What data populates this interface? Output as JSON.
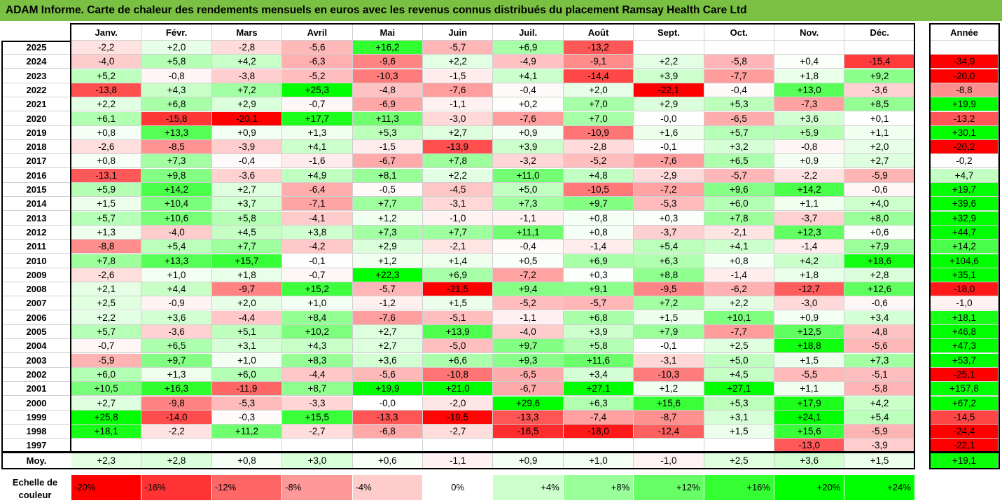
{
  "title": "ADAM Informe. Carte de chaleur des rendements mensuels en euros avec les revenus connus distribués du placement Ramsay Health Care Ltd",
  "colors": {
    "title_bg": "#7ac143",
    "max_red": "#ff0000",
    "max_green": "#00ff00"
  },
  "chart_data": {
    "type": "heatmap",
    "title": "ADAM Informe. Carte de chaleur des rendements mensuels en euros avec les revenus connus distribués du placement Ramsay Health Care Ltd",
    "months": [
      "Janv.",
      "Févr.",
      "Mars",
      "Avril",
      "Mai",
      "Juin",
      "Juil.",
      "Août",
      "Sept.",
      "Oct.",
      "Nov.",
      "Déc."
    ],
    "annual_label": "Année",
    "avg_label": "Moy.",
    "rows": [
      {
        "year": "2025",
        "values": [
          "-2,2",
          "+2,0",
          "-2,8",
          "-5,6",
          "+16,2",
          "-5,7",
          "+6,9",
          "-13,2",
          "",
          "",
          "",
          ""
        ],
        "annual": ""
      },
      {
        "year": "2024",
        "values": [
          "-4,0",
          "+5,8",
          "+4,2",
          "-6,3",
          "-9,6",
          "+2,2",
          "-4,9",
          "-9,1",
          "+2,2",
          "-5,8",
          "+0,4",
          "-15,4"
        ],
        "annual": "-34,9"
      },
      {
        "year": "2023",
        "values": [
          "+5,2",
          "-0,8",
          "-3,8",
          "-5,2",
          "-10,3",
          "-1,5",
          "+4,1",
          "-14,4",
          "+3,9",
          "-7,7",
          "+1,8",
          "+9,2"
        ],
        "annual": "-20,0"
      },
      {
        "year": "2022",
        "values": [
          "-13,8",
          "+4,3",
          "+7,2",
          "+25,3",
          "-4,8",
          "-7,6",
          "-0,4",
          "+2,0",
          "-22,1",
          "-0,4",
          "+13,0",
          "-3,6"
        ],
        "annual": "-8,8"
      },
      {
        "year": "2021",
        "values": [
          "+2,2",
          "+6,8",
          "+2,9",
          "-0,7",
          "-6,9",
          "-1,1",
          "+0,2",
          "+7,0",
          "+2,9",
          "+5,3",
          "-7,3",
          "+8,5"
        ],
        "annual": "+19,9"
      },
      {
        "year": "2020",
        "values": [
          "+6,1",
          "-15,8",
          "-20,1",
          "+17,7",
          "+11,3",
          "-3,0",
          "-7,6",
          "+7,0",
          "-0,0",
          "-6,5",
          "+3,6",
          "+0,1"
        ],
        "annual": "-13,2"
      },
      {
        "year": "2019",
        "values": [
          "+0,8",
          "+13,3",
          "+0,9",
          "+1,3",
          "+5,3",
          "+2,7",
          "+0,9",
          "-10,9",
          "+1,6",
          "+5,7",
          "+5,9",
          "+1,1"
        ],
        "annual": "+30,1"
      },
      {
        "year": "2018",
        "values": [
          "-2,6",
          "-8,5",
          "-3,9",
          "+4,1",
          "-1,5",
          "-13,9",
          "+3,9",
          "-2,8",
          "-0,1",
          "+3,2",
          "-0,8",
          "+2,0"
        ],
        "annual": "-20,2"
      },
      {
        "year": "2017",
        "values": [
          "+0,8",
          "+7,3",
          "-0,4",
          "-1,6",
          "-6,7",
          "+7,8",
          "-3,2",
          "-5,2",
          "-7,6",
          "+6,5",
          "+0,9",
          "+2,7"
        ],
        "annual": "-0,2"
      },
      {
        "year": "2016",
        "values": [
          "-13,1",
          "+9,8",
          "-3,6",
          "+4,9",
          "+8,1",
          "+2,2",
          "+11,0",
          "+4,8",
          "-2,9",
          "-5,7",
          "-2,2",
          "-5,9"
        ],
        "annual": "+4,7"
      },
      {
        "year": "2015",
        "values": [
          "+5,9",
          "+14,2",
          "+2,7",
          "-6,4",
          "-0,5",
          "-4,5",
          "+5,0",
          "-10,5",
          "-7,2",
          "+9,6",
          "+14,2",
          "-0,6"
        ],
        "annual": "+19,7"
      },
      {
        "year": "2014",
        "values": [
          "+1,5",
          "+10,4",
          "+3,7",
          "-7,1",
          "+7,7",
          "-3,1",
          "+7,3",
          "+9,7",
          "-5,3",
          "+6,0",
          "+1,1",
          "+4,0"
        ],
        "annual": "+39,6"
      },
      {
        "year": "2013",
        "values": [
          "+5,7",
          "+10,6",
          "+5,8",
          "-4,1",
          "+1,2",
          "-1,0",
          "-1,1",
          "+0,8",
          "+0,3",
          "+7,8",
          "-3,7",
          "+8,0"
        ],
        "annual": "+32,9"
      },
      {
        "year": "2012",
        "values": [
          "+1,3",
          "-4,0",
          "+4,5",
          "+3,8",
          "+7,3",
          "+7,7",
          "+11,1",
          "+0,8",
          "-3,7",
          "-2,1",
          "+12,3",
          "+0,6"
        ],
        "annual": "+44,7"
      },
      {
        "year": "2011",
        "values": [
          "-8,8",
          "+5,4",
          "+7,7",
          "-4,2",
          "+2,9",
          "-2,1",
          "-0,4",
          "-1,4",
          "+5,4",
          "+4,1",
          "-1,4",
          "+7,9"
        ],
        "annual": "+14,2"
      },
      {
        "year": "2010",
        "values": [
          "+7,8",
          "+13,3",
          "+15,7",
          "-0,1",
          "+1,2",
          "+1,4",
          "+0,5",
          "+6,9",
          "+6,3",
          "+0,8",
          "+4,2",
          "+18,6"
        ],
        "annual": "+104,6"
      },
      {
        "year": "2009",
        "values": [
          "-2,6",
          "+1,0",
          "+1,8",
          "-0,7",
          "+22,3",
          "+6,9",
          "-7,2",
          "+0,3",
          "+8,8",
          "-1,4",
          "+1,8",
          "+2,8"
        ],
        "annual": "+35,1"
      },
      {
        "year": "2008",
        "values": [
          "+2,1",
          "+4,4",
          "-9,7",
          "+15,2",
          "-5,7",
          "-21,5",
          "+9,4",
          "+9,1",
          "-9,5",
          "-6,2",
          "-12,7",
          "+12,6"
        ],
        "annual": "-18,0"
      },
      {
        "year": "2007",
        "values": [
          "+2,5",
          "-0,9",
          "+2,0",
          "+1,0",
          "-1,2",
          "+1,5",
          "-5,2",
          "-5,7",
          "+7,2",
          "+2,2",
          "-3,0",
          "-0,6"
        ],
        "annual": "-1,0"
      },
      {
        "year": "2006",
        "values": [
          "+2,2",
          "+3,6",
          "-4,4",
          "+8,4",
          "-7,6",
          "-5,1",
          "-1,1",
          "+6,8",
          "+1,5",
          "+10,1",
          "+0,9",
          "+3,4"
        ],
        "annual": "+18,1"
      },
      {
        "year": "2005",
        "values": [
          "+5,7",
          "-3,6",
          "+5,1",
          "+10,2",
          "+2,7",
          "+13,9",
          "-4,0",
          "+3,9",
          "+7,9",
          "-7,7",
          "+12,5",
          "-4,8"
        ],
        "annual": "+46,8"
      },
      {
        "year": "2004",
        "values": [
          "-0,7",
          "+6,5",
          "+3,1",
          "+4,3",
          "+2,7",
          "-5,0",
          "+9,7",
          "+5,8",
          "-0,1",
          "+2,5",
          "+18,8",
          "-5,6"
        ],
        "annual": "+47,3"
      },
      {
        "year": "2003",
        "values": [
          "-5,9",
          "+9,7",
          "+1,0",
          "+8,3",
          "+3,6",
          "+6,6",
          "+9,3",
          "+11,6",
          "-3,1",
          "+5,0",
          "+1,5",
          "+7,3"
        ],
        "annual": "+53,7"
      },
      {
        "year": "2002",
        "values": [
          "+6,0",
          "+1,3",
          "+6,0",
          "-4,4",
          "-5,6",
          "-10,8",
          "-6,5",
          "+3,4",
          "-10,3",
          "+4,5",
          "-5,5",
          "-5,1"
        ],
        "annual": "-25,1"
      },
      {
        "year": "2001",
        "values": [
          "+10,5",
          "+16,3",
          "-11,9",
          "+8,7",
          "+19,9",
          "+21,0",
          "-6,7",
          "+27,1",
          "+1,2",
          "+27,1",
          "+1,1",
          "-5,8"
        ],
        "annual": "+157,8"
      },
      {
        "year": "2000",
        "values": [
          "+2,7",
          "-9,8",
          "-5,3",
          "-3,3",
          "-0,0",
          "-2,0",
          "+29,6",
          "+6,3",
          "+15,6",
          "+5,3",
          "+17,9",
          "+4,2"
        ],
        "annual": "+67,2"
      },
      {
        "year": "1999",
        "values": [
          "+25,8",
          "-14,0",
          "-0,3",
          "+15,5",
          "-13,3",
          "-19,5",
          "-13,3",
          "-7,4",
          "-8,7",
          "+3,1",
          "+24,1",
          "+5,4"
        ],
        "annual": "-14,5"
      },
      {
        "year": "1998",
        "values": [
          "+18,1",
          "-2,2",
          "+11,2",
          "-2,7",
          "-6,8",
          "-2,7",
          "-16,5",
          "-18,0",
          "-12,4",
          "+1,5",
          "+15,6",
          "-5,9"
        ],
        "annual": "-24,4"
      },
      {
        "year": "1997",
        "values": [
          "",
          "",
          "",
          "",
          "",
          "",
          "",
          "",
          "",
          "",
          "-13,0",
          "-3,9"
        ],
        "annual": "-22,1"
      }
    ],
    "averages": [
      "+2,3",
      "+2,8",
      "+0,8",
      "+3,0",
      "+0,6",
      "-1,1",
      "+0,9",
      "+1,0",
      "-1,0",
      "+2,5",
      "+3,6",
      "+1,5"
    ],
    "annual_average": "+19,1",
    "legend": {
      "label": "Echelle de couleur",
      "stops": [
        "-20%",
        "-16%",
        "-12%",
        "-8%",
        "-4%",
        "0%",
        "+4%",
        "+8%",
        "+12%",
        "+16%",
        "+20%",
        "+24%"
      ]
    }
  }
}
